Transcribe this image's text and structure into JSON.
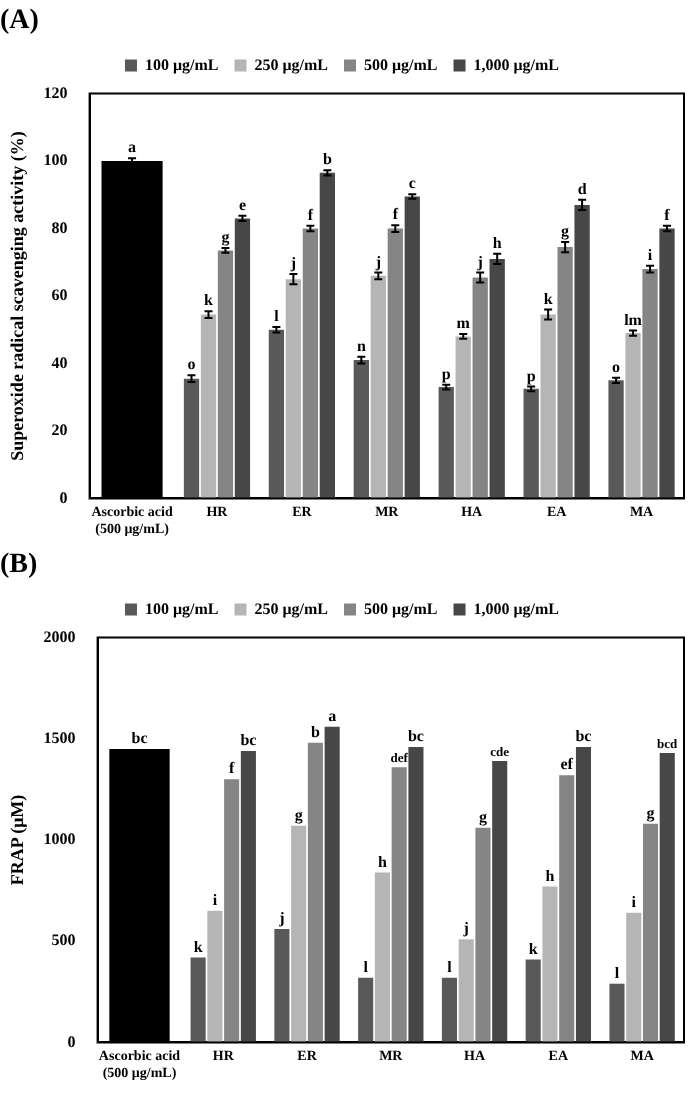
{
  "chart_data": [
    {
      "type": "bar",
      "title": "(A)",
      "ylabel": "Superoxide radical scavenging activity (%)",
      "categories": [
        "Ascorbic acid\n(500 μg/mL)",
        "HR",
        "ER",
        "MR",
        "HA",
        "EA",
        "MA"
      ],
      "ylim": [
        0,
        120
      ],
      "yticks": [
        0,
        20,
        40,
        60,
        80,
        100,
        120
      ],
      "legend": "top",
      "grid": false,
      "series": [
        {
          "color": "#000000",
          "values": [
            100,
            null,
            null,
            null,
            null,
            null,
            null
          ],
          "errors": [
            0.8,
            null,
            null,
            null,
            null,
            null,
            null
          ],
          "value_labels": [
            "a",
            null,
            null,
            null,
            null,
            null,
            null
          ]
        },
        {
          "name": "100 μg/mL",
          "color": "#595959",
          "values": [
            null,
            35.5,
            50,
            41,
            33,
            32.5,
            35
          ],
          "errors": [
            null,
            1,
            0.8,
            1,
            0.7,
            0.7,
            0.8
          ],
          "value_labels": [
            null,
            "o",
            "l",
            "n",
            "p",
            "p",
            "o"
          ]
        },
        {
          "name": "250 μg/mL",
          "color": "#b5b5b5",
          "values": [
            null,
            54.5,
            65,
            66,
            48,
            54.5,
            49
          ],
          "errors": [
            null,
            1,
            1.5,
            1,
            0.7,
            1.5,
            0.8
          ],
          "value_labels": [
            null,
            "k",
            "j",
            "j",
            "m",
            "k",
            "lm"
          ]
        },
        {
          "name": "500 μg/mL",
          "color": "#858585",
          "values": [
            null,
            73.5,
            80,
            80,
            65.5,
            74.5,
            68
          ],
          "errors": [
            null,
            0.7,
            0.8,
            1,
            1.5,
            1.5,
            1
          ],
          "value_labels": [
            null,
            "g",
            "f",
            "f",
            "j",
            "g",
            "i"
          ]
        },
        {
          "name": "1,000 μg/mL",
          "color": "#474747",
          "values": [
            null,
            83,
            96.5,
            89.5,
            71,
            87,
            80
          ],
          "errors": [
            null,
            0.8,
            0.8,
            0.7,
            1.5,
            1.5,
            0.8
          ],
          "value_labels": [
            null,
            "e",
            "b",
            "c",
            "h",
            "d",
            "f"
          ]
        }
      ]
    },
    {
      "type": "bar",
      "title": "(B)",
      "ylabel": "FRAP (μM)",
      "categories": [
        "Ascorbic acid\n(500 μg/mL)",
        "HR",
        "ER",
        "MR",
        "HA",
        "EA",
        "MA"
      ],
      "ylim": [
        0,
        2000
      ],
      "yticks": [
        0,
        500,
        1000,
        1500,
        2000
      ],
      "legend": "top",
      "grid": false,
      "series": [
        {
          "color": "#000000",
          "values": [
            1450,
            null,
            null,
            null,
            null,
            null,
            null
          ],
          "value_labels": [
            "bc",
            null,
            null,
            null,
            null,
            null,
            null
          ]
        },
        {
          "name": "100 μg/mL",
          "color": "#595959",
          "values": [
            null,
            420,
            560,
            320,
            320,
            410,
            290
          ],
          "value_labels": [
            null,
            "k",
            "j",
            "l",
            "l",
            "k",
            "l"
          ]
        },
        {
          "name": "250 μg/mL",
          "color": "#b5b5b5",
          "values": [
            null,
            650,
            1070,
            840,
            510,
            770,
            640
          ],
          "value_labels": [
            null,
            "i",
            "g",
            "h",
            "j",
            "h",
            "i"
          ]
        },
        {
          "name": "500 μg/mL",
          "color": "#858585",
          "values": [
            null,
            1300,
            1480,
            1360,
            1060,
            1320,
            1080
          ],
          "value_labels": [
            null,
            "f",
            "b",
            "def",
            "g",
            "ef",
            "g"
          ]
        },
        {
          "name": "1,000 μg/mL",
          "color": "#474747",
          "values": [
            null,
            1440,
            1560,
            1460,
            1390,
            1460,
            1430
          ],
          "value_labels": [
            null,
            "bc",
            "a",
            "bc",
            "cde",
            "bc",
            "bcd"
          ]
        }
      ]
    }
  ]
}
